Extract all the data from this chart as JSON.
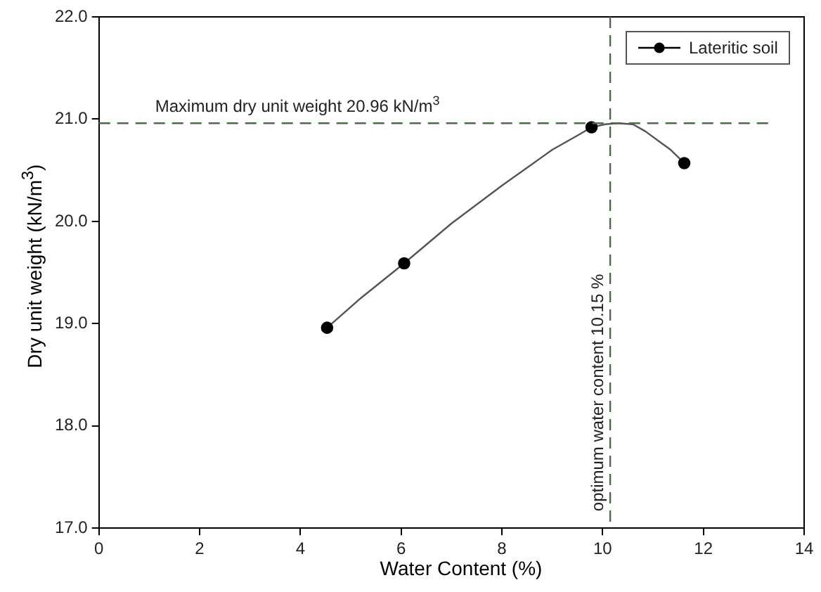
{
  "chart_data": {
    "type": "scatter",
    "xlabel": "Water Content (%)",
    "ylabel": "Dry unit weight (kN/m$^{3}$)",
    "xlim": [
      0,
      14
    ],
    "xticks": [
      0,
      2,
      4,
      6,
      8,
      10,
      12,
      14
    ],
    "ylim": [
      17,
      22
    ],
    "yticks": [
      {
        "value": 17,
        "label": "17.0"
      },
      {
        "value": 18,
        "label": "18.0"
      },
      {
        "value": 19,
        "label": "19.0"
      },
      {
        "value": 20,
        "label": "20.0"
      },
      {
        "value": 21,
        "label": "21.0"
      },
      {
        "value": 22,
        "label": "22.0"
      }
    ],
    "grid": false,
    "legend": "top right",
    "marker": "circle",
    "series": [
      {
        "name": "Lateritic soil",
        "color": "#000000",
        "x": [
          4.53,
          6.06,
          9.78,
          11.62
        ],
        "values": [
          18.96,
          19.59,
          20.92,
          20.57
        ]
      },
      {
        "type": "line",
        "color": "#555555",
        "marker": "none",
        "line_style": "solid",
        "x": [
          4.53,
          5.2,
          6.06,
          7,
          8,
          9,
          9.5,
          9.78,
          10.05,
          10.3,
          10.6,
          10.85,
          11.1,
          11.35,
          11.62
        ],
        "values": [
          18.96,
          19.25,
          19.59,
          19.98,
          20.35,
          20.7,
          20.84,
          20.92,
          20.95,
          20.96,
          20.95,
          20.88,
          20.79,
          20.7,
          20.57
        ]
      }
    ],
    "ref_lines": [
      {
        "axis": "y",
        "value": 20.96,
        "label": "Maximum dry unit weight 20.96 kN/m$^{3}$",
        "color": "#4a6a4a",
        "line_style": "dashed"
      },
      {
        "axis": "x",
        "value": 10.15,
        "label": "optimum water content 10.15 %",
        "color": "#4a6a4a",
        "line_style": "dashed"
      }
    ]
  }
}
